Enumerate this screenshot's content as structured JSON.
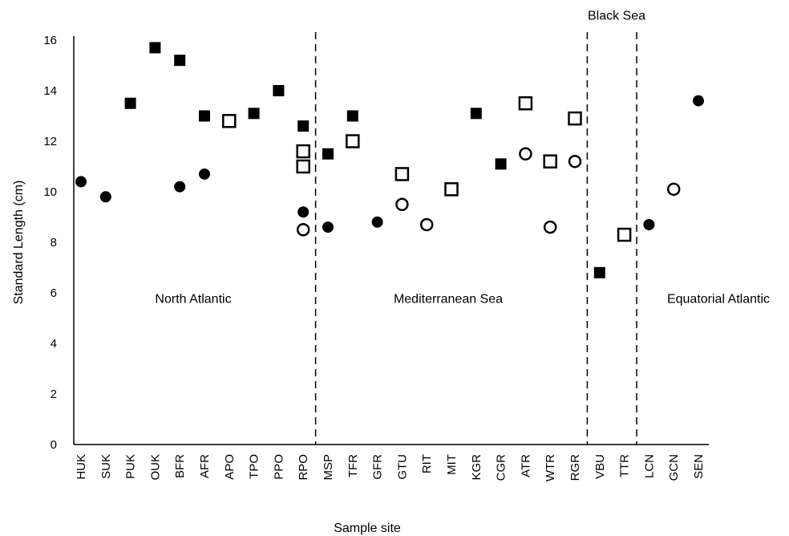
{
  "chart_data": {
    "type": "scatter",
    "title": "",
    "xlabel": "Sample site",
    "ylabel": "Standard Length (cm)",
    "ylim": [
      0,
      16
    ],
    "yticks": [
      0,
      2,
      4,
      6,
      8,
      10,
      12,
      14,
      16
    ],
    "grid": false,
    "categories": [
      "HUK",
      "SUK",
      "PUK",
      "OUK",
      "BFR",
      "AFR",
      "APO",
      "TPO",
      "PPO",
      "RPO",
      "MSP",
      "TFR",
      "GFR",
      "GTU",
      "RIT",
      "MIT",
      "KGR",
      "CGR",
      "ATR",
      "WTR",
      "RGR",
      "VBU",
      "TTR",
      "LCN",
      "GCN",
      "SEN"
    ],
    "regions": [
      {
        "name": "North Atlantic",
        "label_y": 5.8
      },
      {
        "name": "Mediterranean Sea",
        "label_y": 5.8
      },
      {
        "name": "Black Sea",
        "label_y": 17.0
      },
      {
        "name": "Equatorial Atlantic",
        "label_y": 5.8
      }
    ],
    "region_boundaries_after": [
      "RPO",
      "RGR",
      "TTR"
    ],
    "series": [
      {
        "marker": "filled-square",
        "points": [
          {
            "x": "PUK",
            "y": 13.5
          },
          {
            "x": "OUK",
            "y": 15.7
          },
          {
            "x": "BFR",
            "y": 15.2
          },
          {
            "x": "AFR",
            "y": 13.0
          },
          {
            "x": "TPO",
            "y": 13.1
          },
          {
            "x": "PPO",
            "y": 14.0
          },
          {
            "x": "RPO",
            "y": 12.6
          },
          {
            "x": "MSP",
            "y": 11.5
          },
          {
            "x": "TFR",
            "y": 13.0
          },
          {
            "x": "KGR",
            "y": 13.1
          },
          {
            "x": "CGR",
            "y": 11.1
          },
          {
            "x": "VBU",
            "y": 6.8
          }
        ]
      },
      {
        "marker": "open-square",
        "points": [
          {
            "x": "APO",
            "y": 12.8
          },
          {
            "x": "RPO",
            "y": 11.6
          },
          {
            "x": "RPO",
            "y": 11.0
          },
          {
            "x": "TFR",
            "y": 12.0
          },
          {
            "x": "GTU",
            "y": 10.7
          },
          {
            "x": "MIT",
            "y": 10.1
          },
          {
            "x": "ATR",
            "y": 13.5
          },
          {
            "x": "WTR",
            "y": 11.2
          },
          {
            "x": "RGR",
            "y": 12.9
          },
          {
            "x": "TTR",
            "y": 8.3
          }
        ]
      },
      {
        "marker": "filled-circle",
        "points": [
          {
            "x": "HUK",
            "y": 10.4
          },
          {
            "x": "SUK",
            "y": 9.8
          },
          {
            "x": "BFR",
            "y": 10.2
          },
          {
            "x": "AFR",
            "y": 10.7
          },
          {
            "x": "RPO",
            "y": 9.2
          },
          {
            "x": "MSP",
            "y": 8.6
          },
          {
            "x": "GFR",
            "y": 8.8
          },
          {
            "x": "LCN",
            "y": 8.7
          },
          {
            "x": "SEN",
            "y": 13.6
          }
        ]
      },
      {
        "marker": "open-circle",
        "points": [
          {
            "x": "RPO",
            "y": 8.5
          },
          {
            "x": "GTU",
            "y": 9.5
          },
          {
            "x": "RIT",
            "y": 8.7
          },
          {
            "x": "ATR",
            "y": 11.5
          },
          {
            "x": "WTR",
            "y": 8.6
          },
          {
            "x": "RGR",
            "y": 11.2
          },
          {
            "x": "GCN",
            "y": 10.1
          }
        ]
      }
    ]
  }
}
